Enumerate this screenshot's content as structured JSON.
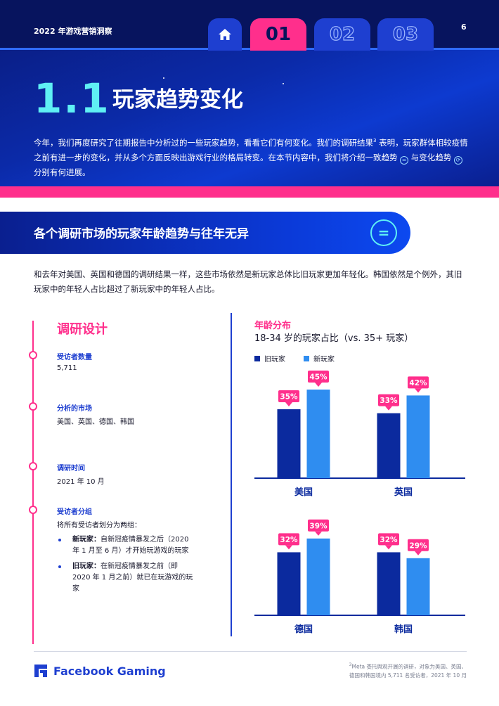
{
  "header": {
    "report_title": "2022 年游戏营销洞察",
    "page_number": "6",
    "tabs": [
      {
        "label": ""
      },
      {
        "label": "01"
      },
      {
        "label": "02"
      },
      {
        "label": "03"
      }
    ]
  },
  "section": {
    "number": "1.1",
    "title": "玩家趋势变化",
    "intro_1": "今年，我们再度研究了往期报告中分析过的一些玩家趋势，看看它们有何变化。我们的调研结果",
    "intro_sup": "3",
    "intro_2": " 表明，玩家群体相较疫情之前有进一步的变化，并从多个方面反映出游戏行业的格局转变。在本节内容中，我们将介绍一致趋势 ",
    "intro_3": " 与变化趋势 ",
    "intro_4": " 分别有何进展。"
  },
  "subheading": {
    "title": "各个调研市场的玩家年龄趋势与往年无异",
    "icon": "equals-icon",
    "icon_glyph": "="
  },
  "summary": "和去年对美国、英国和德国的调研结果一样，这些市场依然是新玩家总体比旧玩家更加年轻化。韩国依然是个例外，其旧玩家中的年轻人占比超过了新玩家中的年轻人占比。",
  "research_design": {
    "title": "调研设计",
    "respondents_label": "受访者数量",
    "respondents_value": "5,711",
    "markets_label": "分析的市场",
    "markets_value": "美国、英国、德国、韩国",
    "period_label": "调研时间",
    "period_value": "2021 年 10 月",
    "groups_label": "受访者分组",
    "groups_intro": "将所有受访者划分为两组：",
    "groups": [
      {
        "name": "新玩家：",
        "desc": "自新冠疫情暴发之后（2020 年 1 月至 6 月）才开始玩游戏的玩家"
      },
      {
        "name": "旧玩家：",
        "desc": "在新冠疫情暴发之前（即 2020 年 1 月之前）就已在玩游戏的玩家"
      }
    ]
  },
  "chart_data": {
    "type": "bar",
    "title": "年龄分布",
    "subtitle": "18-34 岁的玩家占比（vs. 35+ 玩家）",
    "categories": [
      "美国",
      "英国",
      "德国",
      "韩国"
    ],
    "series": [
      {
        "name": "旧玩家",
        "values": [
          35,
          33,
          32,
          32
        ],
        "color": "#0b2a9e"
      },
      {
        "name": "新玩家",
        "values": [
          45,
          42,
          39,
          29
        ],
        "color": "#2f8df0"
      }
    ],
    "value_suffix": "%",
    "label_color": "#ff2f8c",
    "ylim": [
      0,
      50
    ],
    "legend_position": "top-left"
  },
  "footer": {
    "brand": "Facebook Gaming",
    "footnote_sup": "3",
    "footnote_1": "Meta 委托舆观开展的调研，对象为美国、英国、",
    "footnote_2": "德国和韩国境内 5,711 名受访者，2021 年 10 月"
  },
  "colors": {
    "accent_pink": "#ff2f8c",
    "accent_cyan": "#5ff0f4",
    "brand_blue": "#1e3fd0"
  }
}
